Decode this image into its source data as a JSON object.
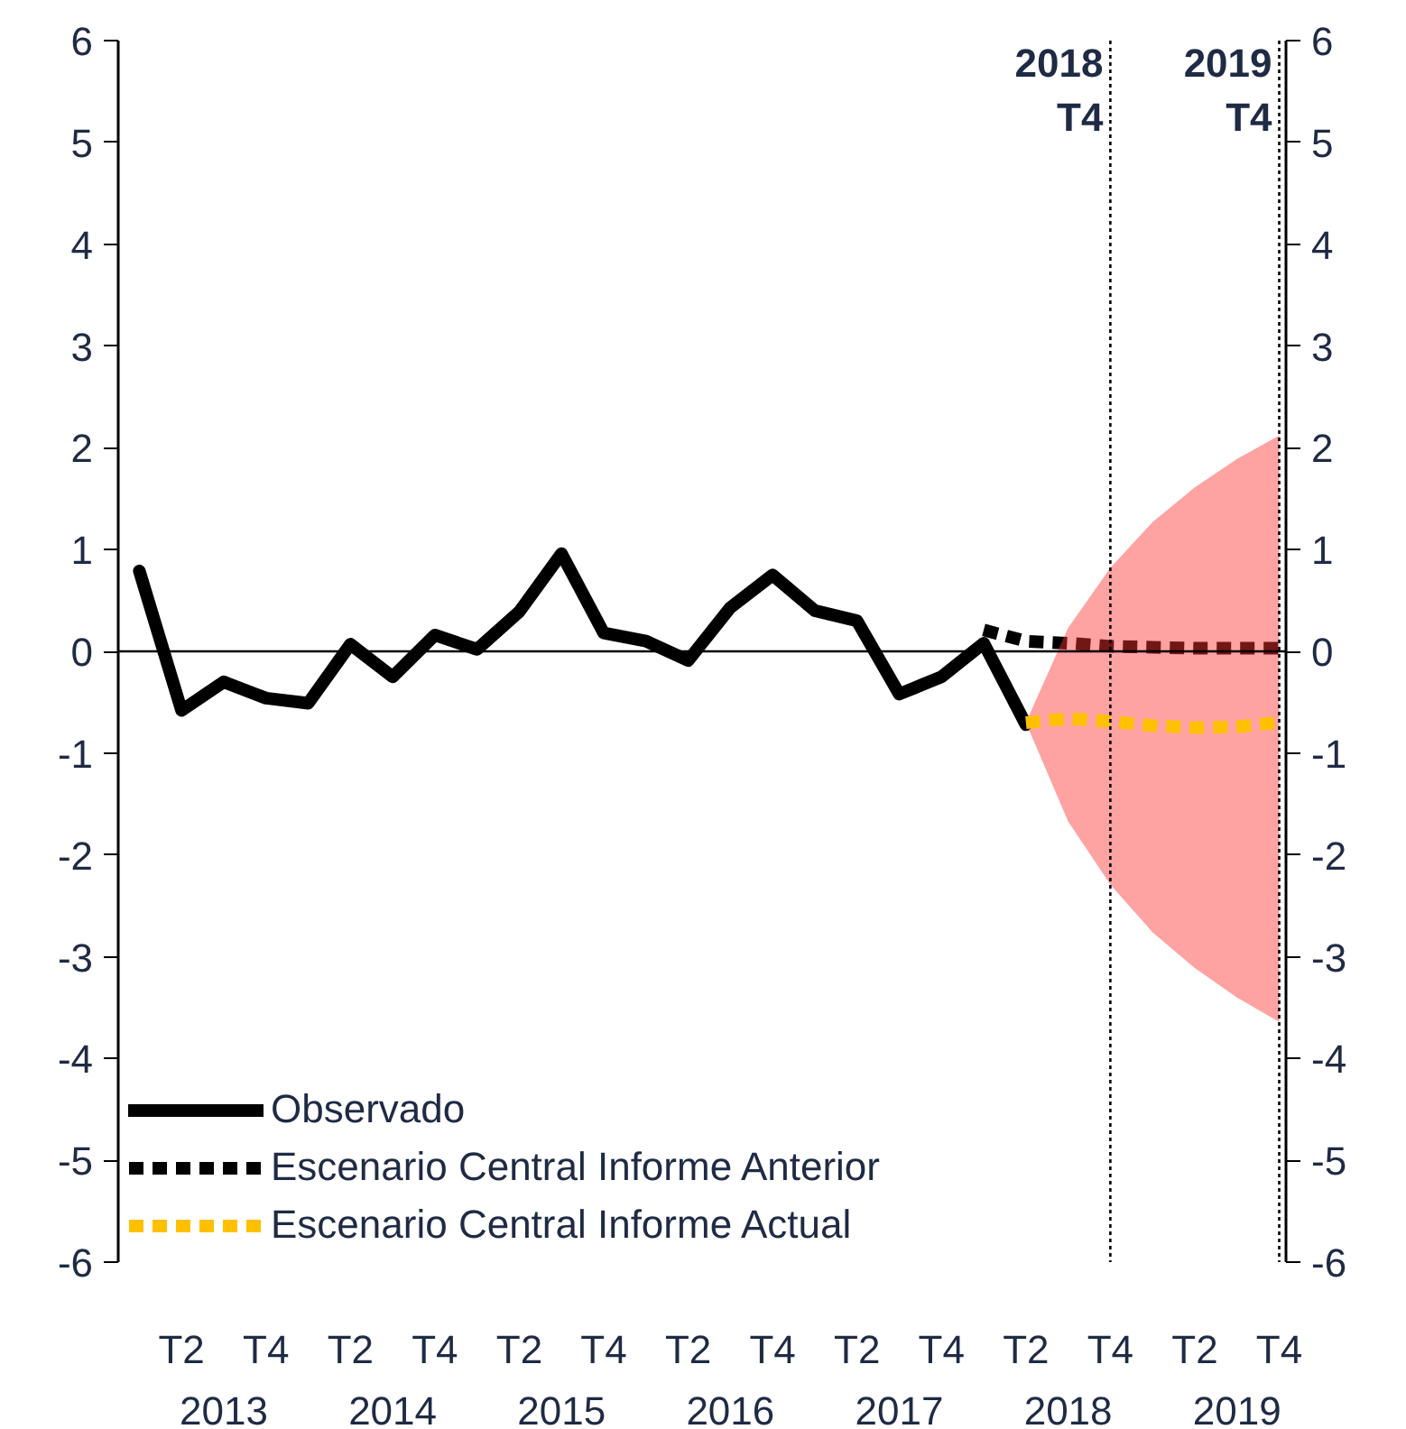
{
  "chart_data": {
    "type": "line",
    "x": [
      2012.5,
      2012.75,
      2013.0,
      2013.25,
      2013.5,
      2013.75,
      2014.0,
      2014.25,
      2014.5,
      2014.75,
      2015.0,
      2015.25,
      2015.5,
      2015.75,
      2016.0,
      2016.25,
      2016.5,
      2016.75,
      2017.0,
      2017.25,
      2017.5,
      2017.75,
      2018.0,
      2018.25,
      2018.5,
      2018.75,
      2019.0,
      2019.25
    ],
    "xlim": [
      2012.375,
      2019.29
    ],
    "xticks": [
      2013,
      2014,
      2015,
      2016,
      2017,
      2018,
      2019
    ],
    "annotations": [
      "T2",
      "T4",
      "T2",
      "T4",
      "T2",
      "T4",
      "T2",
      "T4",
      "T2",
      "T4",
      "T2",
      "T4",
      "T2",
      "T4"
    ],
    "ylim": [
      -6,
      6
    ],
    "yticks": [
      -6,
      -5,
      -4,
      -3,
      -2,
      -1,
      0,
      1,
      2,
      3,
      4,
      5,
      6
    ],
    "y2lim": [
      -6,
      6
    ],
    "y2ticks": [
      -6,
      -5,
      -4,
      -3,
      -2,
      -1,
      0,
      1,
      2,
      3,
      4,
      5,
      6
    ],
    "grid": false,
    "legend": "bottom left",
    "series": [
      {
        "name": "Observado",
        "color": "#000000",
        "line_style": "solid",
        "values": [
          0.79,
          -0.58,
          -0.3,
          -0.46,
          -0.51,
          0.07,
          -0.25,
          0.16,
          0.02,
          0.39,
          0.96,
          0.18,
          0.1,
          -0.09,
          0.43,
          0.75,
          0.4,
          0.3,
          -0.42,
          -0.25,
          0.08,
          -0.72,
          null,
          null,
          null,
          null,
          null,
          null
        ]
      },
      {
        "name": "Escenario Central Informe Anterior",
        "color": "#000000",
        "line_style": "dashed",
        "values": [
          null,
          null,
          null,
          null,
          null,
          null,
          null,
          null,
          null,
          null,
          null,
          null,
          null,
          null,
          null,
          null,
          null,
          null,
          null,
          null,
          0.21,
          0.1,
          0.08,
          0.05,
          0.04,
          0.03,
          0.03,
          0.03
        ]
      },
      {
        "name": "Escenario Central Informe Actual",
        "color": "#ffc000",
        "line_style": "dashed",
        "values": [
          null,
          null,
          null,
          null,
          null,
          null,
          null,
          null,
          null,
          null,
          null,
          null,
          null,
          null,
          null,
          null,
          null,
          null,
          null,
          null,
          null,
          -0.7,
          -0.66,
          -0.69,
          -0.73,
          -0.75,
          -0.74,
          -0.7
        ],
        "lower": [
          null,
          null,
          null,
          null,
          null,
          null,
          null,
          null,
          null,
          null,
          null,
          null,
          null,
          null,
          null,
          null,
          null,
          null,
          null,
          null,
          null,
          -0.7,
          -1.67,
          -2.29,
          -2.76,
          -3.11,
          -3.4,
          -3.64
        ],
        "upper": [
          null,
          null,
          null,
          null,
          null,
          null,
          null,
          null,
          null,
          null,
          null,
          null,
          null,
          null,
          null,
          null,
          null,
          null,
          null,
          null,
          null,
          -0.7,
          0.23,
          0.82,
          1.27,
          1.61,
          1.89,
          2.12
        ]
      }
    ],
    "ref_lines": [
      {
        "axis": "y",
        "value": 0,
        "color": "#000000",
        "line_style": "solid"
      },
      {
        "axis": "x",
        "value": 2018.25,
        "label": "2018\nT4",
        "color": "#000000",
        "line_style": "dotted"
      },
      {
        "axis": "x",
        "value": 2019.25,
        "label": "2019\nT4",
        "color": "#000000",
        "line_style": "dotted"
      }
    ]
  }
}
